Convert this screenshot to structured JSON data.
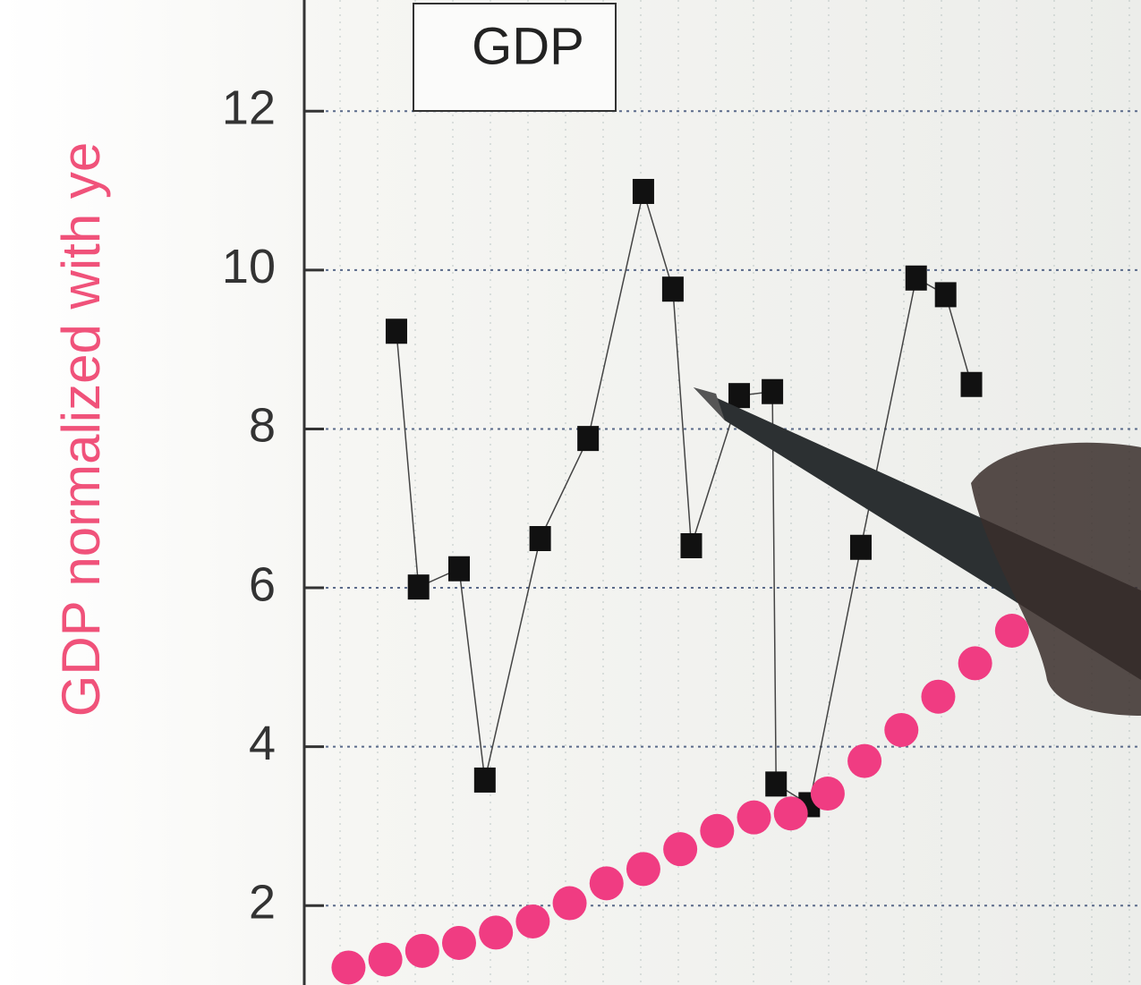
{
  "chart_data": {
    "type": "scatter",
    "ylabel": "GDP normalized with ye",
    "legend_label": "GDP",
    "series": [
      {
        "name": "GDP",
        "color": "#111111",
        "marker": "square",
        "line": true,
        "x": [
          1.3,
          1.9,
          3.0,
          3.7,
          5.2,
          6.5,
          8.0,
          8.8,
          9.3,
          10.6,
          11.5,
          11.6,
          12.5,
          13.9,
          15.4,
          16.2,
          16.9
        ],
        "values": [
          9.23,
          6.01,
          6.24,
          3.58,
          6.62,
          7.88,
          10.99,
          9.76,
          6.53,
          8.42,
          8.47,
          3.53,
          3.27,
          6.51,
          9.9,
          9.69,
          8.56
        ]
      },
      {
        "color": "#f03c82",
        "marker": "circle",
        "line": false,
        "x": [
          0,
          1,
          2,
          3,
          4,
          5,
          6,
          7,
          8,
          9,
          10,
          11,
          12,
          13,
          14,
          15,
          16,
          17,
          18
        ],
        "values": [
          1.22,
          1.32,
          1.43,
          1.53,
          1.66,
          1.8,
          2.03,
          2.28,
          2.46,
          2.71,
          2.94,
          3.11,
          3.16,
          3.41,
          3.82,
          4.21,
          4.63,
          5.05,
          5.46
        ]
      }
    ],
    "xlim": [
      -1.2,
      21.5
    ],
    "ylim": [
      1.0,
      13.4
    ],
    "yticks": [
      2,
      4,
      6,
      8,
      10,
      12
    ],
    "grid": true
  }
}
